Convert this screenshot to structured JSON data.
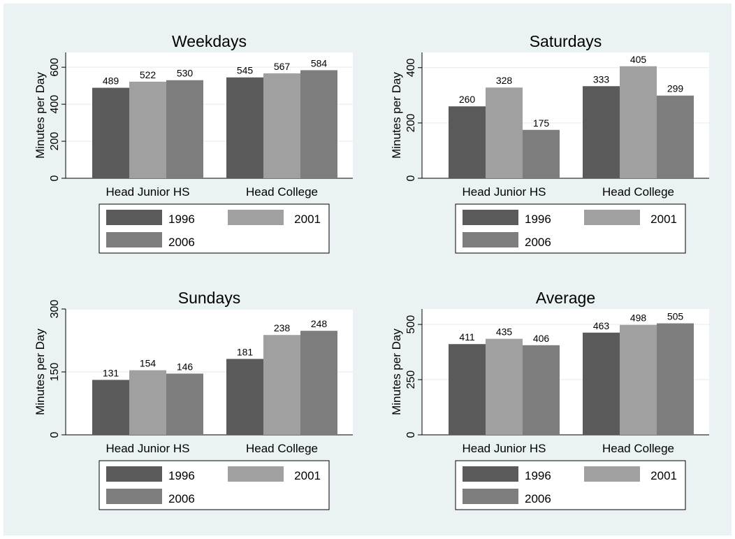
{
  "colors": {
    "frame_bg": "#eaf2f3",
    "plot_bg": "#ffffff",
    "grid": "#eaf2f3",
    "series": [
      "#5a5a5a",
      "#a0a0a0",
      "#7d7d7d"
    ],
    "text": "#000000"
  },
  "chart_data": [
    {
      "type": "bar",
      "title": "Weekdays",
      "ylabel": "Minutes per Day",
      "xlabel": "",
      "categories": [
        "Head Junior HS",
        "Head College"
      ],
      "series": [
        {
          "name": "1996",
          "values": [
            489,
            545
          ]
        },
        {
          "name": "2001",
          "values": [
            522,
            567
          ]
        },
        {
          "name": "2006",
          "values": [
            530,
            584
          ]
        }
      ],
      "ylim": [
        0,
        680
      ],
      "yticks": [
        0,
        200,
        400,
        600
      ],
      "grid": true,
      "legend": "bottom"
    },
    {
      "type": "bar",
      "title": "Saturdays",
      "ylabel": "Minutes per Day",
      "xlabel": "",
      "categories": [
        "Head Junior HS",
        "Head College"
      ],
      "series": [
        {
          "name": "1996",
          "values": [
            260,
            333
          ]
        },
        {
          "name": "2001",
          "values": [
            328,
            405
          ]
        },
        {
          "name": "2006",
          "values": [
            175,
            299
          ]
        }
      ],
      "ylim": [
        0,
        455
      ],
      "yticks": [
        0,
        200,
        400
      ],
      "grid": true,
      "legend": "bottom"
    },
    {
      "type": "bar",
      "title": "Sundays",
      "ylabel": "Minutes per Day",
      "xlabel": "",
      "categories": [
        "Head Junior HS",
        "Head College"
      ],
      "series": [
        {
          "name": "1996",
          "values": [
            131,
            181
          ]
        },
        {
          "name": "2001",
          "values": [
            154,
            238
          ]
        },
        {
          "name": "2006",
          "values": [
            146,
            248
          ]
        }
      ],
      "ylim": [
        0,
        300
      ],
      "yticks": [
        0,
        150,
        300
      ],
      "grid": true,
      "legend": "bottom"
    },
    {
      "type": "bar",
      "title": "Average",
      "ylabel": "Minutes per Day",
      "xlabel": "",
      "categories": [
        "Head Junior HS",
        "Head College"
      ],
      "series": [
        {
          "name": "1996",
          "values": [
            411,
            463
          ]
        },
        {
          "name": "2001",
          "values": [
            435,
            498
          ]
        },
        {
          "name": "2006",
          "values": [
            406,
            505
          ]
        }
      ],
      "ylim": [
        0,
        570
      ],
      "yticks": [
        0,
        250,
        500
      ],
      "grid": true,
      "legend": "bottom"
    }
  ]
}
